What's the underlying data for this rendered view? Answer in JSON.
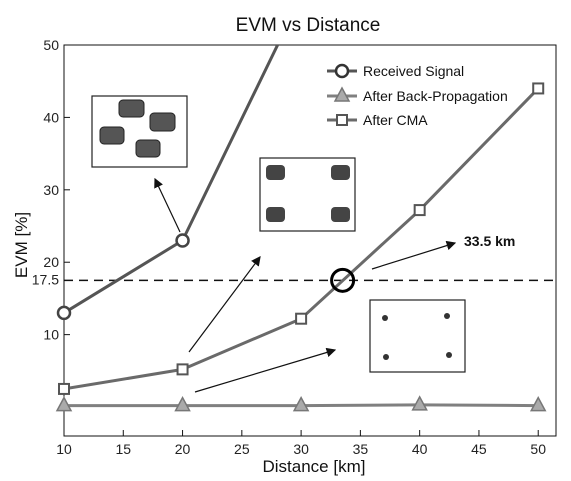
{
  "chart_data": {
    "type": "line",
    "title": "EVM vs Distance",
    "xlabel": "Distance [km]",
    "ylabel": "EVM [%]",
    "xlim": [
      10,
      51.5
    ],
    "ylim": [
      -4,
      50
    ],
    "x_ticks": [
      "10",
      "15",
      "20",
      "25",
      "30",
      "35",
      "40",
      "45",
      "50"
    ],
    "y_ticks": [
      "10",
      "20",
      "30",
      "40",
      "50"
    ],
    "grid": false,
    "legend_position": "top-right",
    "series": [
      {
        "name": "Received Signal",
        "marker": "circle",
        "color": "#555555",
        "x": [
          10,
          20,
          29.5
        ],
        "y": [
          13,
          23,
          55
        ]
      },
      {
        "name": "After Back-Propagation",
        "marker": "triangle",
        "color": "#808080",
        "x": [
          10,
          20,
          30,
          40,
          50
        ],
        "y": [
          0.2,
          0.2,
          0.2,
          0.3,
          0.2
        ]
      },
      {
        "name": "After CMA",
        "marker": "square",
        "color": "#6a6a6a",
        "x": [
          10,
          20,
          30,
          40,
          50
        ],
        "y": [
          2.5,
          5.2,
          12.2,
          27.2,
          44
        ]
      }
    ],
    "threshold": {
      "y": 17.5,
      "label": "17.5"
    },
    "crossing": {
      "x": 33.5,
      "y": 17.5,
      "label": "33.5 km"
    }
  }
}
